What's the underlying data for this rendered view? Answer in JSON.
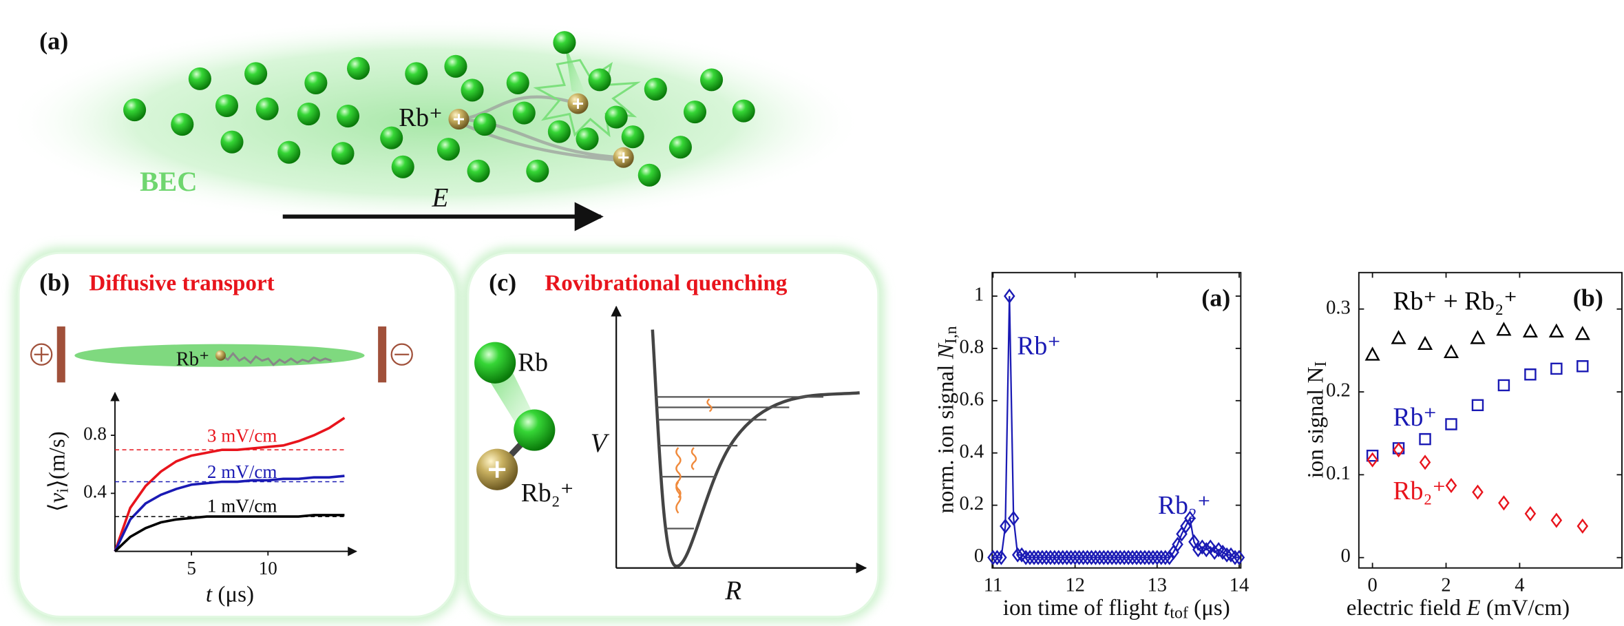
{
  "illustration": {
    "panel_a": {
      "label": "(a)",
      "bec": "BEC",
      "field": "E",
      "ion": "Rb⁺"
    },
    "panel_b": {
      "label": "(b)",
      "title": "Diffusive transport",
      "ion": "Rb⁺"
    },
    "panel_c": {
      "label": "(c)",
      "title": "Rovibrational quenching",
      "atom": "Rb",
      "molecule": "Rb₂⁺",
      "ylabel": "V",
      "xlabel": "R"
    }
  },
  "chart_data": [
    {
      "type": "line",
      "xlabel": [
        {
          "text": "t",
          "style": "italic"
        },
        {
          "text": " (μs)"
        }
      ],
      "ylabel": [
        {
          "text": "⟨"
        },
        {
          "text": "v",
          "style": "italic"
        },
        {
          "text": "i",
          "style": "sub"
        },
        {
          "text": "⟩(m/s)"
        }
      ],
      "x": [
        0,
        1,
        2,
        3,
        4,
        5,
        6,
        7,
        8,
        9,
        10,
        11,
        12,
        13,
        14,
        15
      ],
      "series": [
        {
          "name": "3 mV/cm",
          "color": "#e8141c",
          "asymptote": 0.7,
          "values": [
            0,
            0.3,
            0.45,
            0.55,
            0.62,
            0.66,
            0.68,
            0.7,
            0.7,
            0.71,
            0.72,
            0.73,
            0.76,
            0.8,
            0.85,
            0.92
          ]
        },
        {
          "name": "2 mV/cm",
          "color": "#1a1ab4",
          "asymptote": 0.48,
          "values": [
            0,
            0.22,
            0.33,
            0.39,
            0.43,
            0.46,
            0.47,
            0.48,
            0.48,
            0.49,
            0.49,
            0.5,
            0.5,
            0.51,
            0.51,
            0.52
          ]
        },
        {
          "name": "1 mV/cm",
          "color": "#000000",
          "asymptote": 0.24,
          "values": [
            0,
            0.1,
            0.16,
            0.2,
            0.22,
            0.23,
            0.24,
            0.24,
            0.24,
            0.24,
            0.24,
            0.24,
            0.24,
            0.25,
            0.25,
            0.25
          ]
        }
      ],
      "xlim": [
        0,
        15.5
      ],
      "ylim": [
        0,
        1.05
      ],
      "xticks": [
        5,
        10
      ],
      "yticks": [
        0.4,
        0.8
      ]
    },
    {
      "type": "line",
      "panel_label": "(a)",
      "xlabel": [
        {
          "text": "ion time of flight "
        },
        {
          "text": "t",
          "style": "italic"
        },
        {
          "text": "tof",
          "style": "sub"
        },
        {
          "text": " (μs)"
        }
      ],
      "ylabel": [
        {
          "text": "norm. ion signal "
        },
        {
          "text": "N",
          "style": "italic"
        },
        {
          "text": "I,n",
          "style": "sub"
        }
      ],
      "annotations": [
        "Rb⁺",
        "Rb₂⁺"
      ],
      "x": [
        11,
        11.05,
        11.1,
        11.15,
        11.2,
        11.25,
        11.3,
        11.35,
        11.4,
        11.45,
        11.5,
        11.55,
        11.6,
        11.65,
        11.7,
        11.75,
        11.8,
        11.85,
        11.9,
        11.95,
        12,
        12.05,
        12.1,
        12.15,
        12.2,
        12.25,
        12.3,
        12.35,
        12.4,
        12.45,
        12.5,
        12.55,
        12.6,
        12.65,
        12.7,
        12.75,
        12.8,
        12.85,
        12.9,
        12.95,
        13,
        13.05,
        13.1,
        13.15,
        13.2,
        13.25,
        13.3,
        13.35,
        13.4,
        13.45,
        13.5,
        13.55,
        13.6,
        13.65,
        13.7,
        13.75,
        13.8,
        13.85,
        13.9,
        13.95,
        14
      ],
      "series": [
        {
          "color": "#1a1ab4",
          "marker": "diamond",
          "line": true,
          "values": [
            0,
            0,
            0,
            0.12,
            1,
            0.15,
            0.01,
            0.01,
            0,
            0,
            0,
            0,
            0,
            0,
            0,
            0,
            0,
            0,
            0,
            0,
            0,
            0,
            0,
            0,
            0,
            0,
            0,
            0,
            0,
            0,
            0,
            0,
            0,
            0,
            0,
            0,
            0,
            0,
            0,
            0,
            0,
            0,
            0,
            0,
            0.02,
            0.05,
            0.09,
            0.12,
            0.15,
            0.06,
            0.03,
            0.04,
            0.03,
            0.04,
            0.02,
            0.03,
            0.02,
            0.01,
            0.01,
            0,
            0
          ]
        }
      ],
      "xlim": [
        10.99,
        14.02
      ],
      "ylim": [
        -0.04,
        1.09
      ],
      "xticks": [
        11,
        12,
        13,
        14
      ],
      "yticks": [
        0,
        0.2,
        0.4,
        0.6,
        0.8,
        1
      ]
    },
    {
      "type": "scatter",
      "panel_label": "(b)",
      "xlabel": [
        {
          "text": "electric field "
        },
        {
          "text": "E",
          "style": "italic"
        },
        {
          "text": " (mV/cm)"
        }
      ],
      "ylabel": [
        {
          "text": "ion signal N"
        },
        {
          "text": "I",
          "style": "sub"
        }
      ],
      "x": [
        0,
        0.71,
        1.43,
        2.14,
        2.86,
        3.57,
        4.29,
        5,
        5.71
      ],
      "series": [
        {
          "name": "Rb⁺ + Rb₂⁺",
          "color": "#000000",
          "marker": "triangle",
          "values": [
            0.245,
            0.265,
            0.258,
            0.248,
            0.265,
            0.275,
            0.273,
            0.273,
            0.27
          ]
        },
        {
          "name": "Rb⁺",
          "color": "#1a1ab4",
          "marker": "square",
          "values": [
            0.123,
            0.132,
            0.143,
            0.161,
            0.184,
            0.208,
            0.221,
            0.228,
            0.231
          ]
        },
        {
          "name": "Rb₂⁺",
          "color": "#e8141c",
          "marker": "diamond",
          "values": [
            0.118,
            0.13,
            0.115,
            0.087,
            0.079,
            0.066,
            0.053,
            0.045,
            0.038
          ]
        }
      ],
      "xlim": [
        -0.37,
        6.78
      ],
      "ylim": [
        -0.0125,
        0.344
      ],
      "xticks": [
        0,
        2,
        4
      ],
      "yticks": [
        0,
        0.1,
        0.2,
        0.3
      ]
    }
  ]
}
